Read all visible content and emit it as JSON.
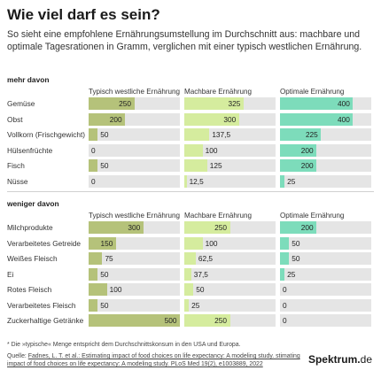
{
  "header": {
    "title": "Wie viel darf es sein?",
    "subtitle": "So sieht eine empfohlene Ernährungsumstellung im Durchschnitt aus: machbare und optimale Tagesrationen in Gramm, verglichen mit einer typisch westlichen Ernährung."
  },
  "colors": {
    "typisch": "#b5c27a",
    "machbar": "#d5ec9e",
    "optimal": "#7ddcbb",
    "track": "#e5e5e5"
  },
  "chart_data": {
    "type": "bar",
    "unit": "Gramm",
    "series": [
      {
        "name": "Typisch westliche Ernährung"
      },
      {
        "name": "Machbare Ernährung"
      },
      {
        "name": "Optimale Ernährung"
      }
    ],
    "scale_max": 500,
    "sections": [
      {
        "label": "mehr davon",
        "rows": [
          {
            "category": "Gemüse",
            "values": [
              250,
              325,
              400
            ],
            "labels": [
              "250",
              "325",
              "400"
            ]
          },
          {
            "category": "Obst",
            "values": [
              200,
              300,
              400
            ],
            "labels": [
              "200",
              "300",
              "400"
            ]
          },
          {
            "category": "Vollkorn (Frischgewicht)",
            "values": [
              50,
              137.5,
              225
            ],
            "labels": [
              "50",
              "137,5",
              "225"
            ]
          },
          {
            "category": "Hülsenfrüchte",
            "values": [
              0,
              100,
              200
            ],
            "labels": [
              "0",
              "100",
              "200"
            ]
          },
          {
            "category": "Fisch",
            "values": [
              50,
              125,
              200
            ],
            "labels": [
              "50",
              "125",
              "200"
            ]
          },
          {
            "category": "Nüsse",
            "values": [
              0,
              12.5,
              25
            ],
            "labels": [
              "0",
              "12,5",
              "25"
            ]
          }
        ]
      },
      {
        "label": "weniger davon",
        "rows": [
          {
            "category": "Milchprodukte",
            "values": [
              300,
              250,
              200
            ],
            "labels": [
              "300",
              "250",
              "200"
            ]
          },
          {
            "category": "Verarbeitetes Getreide",
            "values": [
              150,
              100,
              50
            ],
            "labels": [
              "150",
              "100",
              "50"
            ]
          },
          {
            "category": "Weißes Fleisch",
            "values": [
              75,
              62.5,
              50
            ],
            "labels": [
              "75",
              "62,5",
              "50"
            ]
          },
          {
            "category": "Ei",
            "values": [
              50,
              37.5,
              25
            ],
            "labels": [
              "50",
              "37,5",
              "25"
            ]
          },
          {
            "category": "Rotes Fleisch",
            "values": [
              100,
              50,
              0
            ],
            "labels": [
              "100",
              "50",
              "0"
            ]
          },
          {
            "category": "Verarbeitetes Fleisch",
            "values": [
              50,
              25,
              0
            ],
            "labels": [
              "50",
              "25",
              "0"
            ]
          },
          {
            "category": "Zuckerhaltige Getränke",
            "values": [
              500,
              250,
              0
            ],
            "labels": [
              "500",
              "250",
              "0"
            ]
          }
        ]
      }
    ]
  },
  "footer": {
    "footnote": "* Die »typische« Menge entspricht dem Durchschnittskonsum in den USA und Europa.",
    "source_prefix": "Quelle: ",
    "source_link": "Fadnes, L. T. et al.: Estimating impact of food choices on life expectancy: A modeling study. stimating impact of food choices on life expectancy: A modeling study. PLoS Med 19(2), e1003889, 2022",
    "logo_main": "Spektrum",
    "logo_dot": ".",
    "logo_tld": "de"
  }
}
